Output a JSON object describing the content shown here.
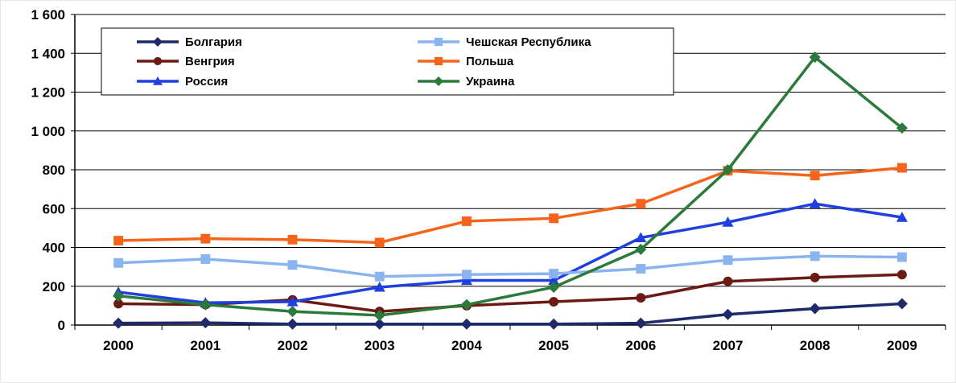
{
  "chart_data": {
    "type": "line",
    "categories": [
      "2000",
      "2001",
      "2002",
      "2003",
      "2004",
      "2005",
      "2006",
      "2007",
      "2008",
      "2009"
    ],
    "y_ticks": [
      "0",
      "200",
      "400",
      "600",
      "800",
      "1 000",
      "1 200",
      "1 400",
      "1 600"
    ],
    "ylim": [
      0,
      1600
    ],
    "grid": "horizontal",
    "legend_position": "top",
    "series": [
      {
        "name": "Болгария",
        "color": "#1f2a6b",
        "marker": "diamond",
        "values": [
          10,
          12,
          5,
          5,
          5,
          5,
          10,
          55,
          85,
          110
        ]
      },
      {
        "name": "Венгрия",
        "color": "#6b1a14",
        "marker": "circle",
        "values": [
          110,
          105,
          130,
          70,
          100,
          120,
          140,
          225,
          245,
          260
        ]
      },
      {
        "name": "Россия",
        "color": "#1f3fe0",
        "marker": "triangle",
        "values": [
          170,
          115,
          120,
          195,
          230,
          230,
          450,
          530,
          625,
          555
        ]
      },
      {
        "name": "Чешская Республика",
        "color": "#8ab4f0",
        "marker": "square",
        "values": [
          320,
          340,
          310,
          250,
          260,
          265,
          290,
          335,
          355,
          350
        ]
      },
      {
        "name": "Польша",
        "color": "#f5641a",
        "marker": "square",
        "values": [
          435,
          445,
          440,
          425,
          535,
          550,
          625,
          795,
          770,
          810
        ]
      },
      {
        "name": "Украина",
        "color": "#2a7a3a",
        "marker": "diamond",
        "values": [
          150,
          105,
          70,
          50,
          105,
          195,
          390,
          800,
          1380,
          1015
        ]
      }
    ]
  }
}
